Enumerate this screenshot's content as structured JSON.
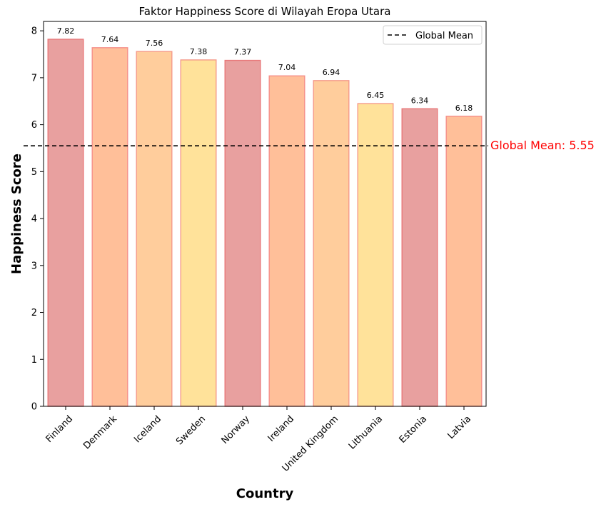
{
  "chart_data": {
    "type": "bar",
    "title": "Faktor Happiness Score di Wilayah Eropa Utara",
    "xlabel": "Country",
    "ylabel": "Happiness Score",
    "categories": [
      "Finland",
      "Denmark",
      "Iceland",
      "Sweden",
      "Norway",
      "Ireland",
      "United Kingdom",
      "Lithuania",
      "Estonia",
      "Latvia"
    ],
    "values": [
      7.82,
      7.64,
      7.56,
      7.38,
      7.37,
      7.04,
      6.94,
      6.45,
      6.34,
      6.18
    ],
    "value_labels": [
      "7.82",
      "7.64",
      "7.56",
      "7.38",
      "7.37",
      "7.04",
      "6.94",
      "6.45",
      "6.34",
      "6.18"
    ],
    "bar_colors": [
      "#e8a09f",
      "#ffbf99",
      "#ffcd9c",
      "#ffe29a",
      "#e8a09f",
      "#ffbf99",
      "#ffcd9c",
      "#ffe29a",
      "#e8a09f",
      "#ffbf99"
    ],
    "bar_edge_colors": [
      "#e8787a",
      "#f5908a",
      "#f59a8a",
      "#f59a8a",
      "#e8787a",
      "#f5908a",
      "#f59a8a",
      "#f59a8a",
      "#e8787a",
      "#f5908a"
    ],
    "ylim": [
      0,
      8.2
    ],
    "yticks": [
      0,
      1,
      2,
      3,
      4,
      5,
      6,
      7,
      8
    ],
    "ytick_labels": [
      "0",
      "1",
      "2",
      "3",
      "4",
      "5",
      "6",
      "7",
      "8"
    ],
    "grid": false,
    "reference_line": {
      "value": 5.55,
      "style": "dashed",
      "color": "#000000",
      "legend_label": "Global Mean",
      "annotation": "Global Mean: 5.55",
      "annotation_color": "#ff0000"
    },
    "legend": {
      "placement": "top-right",
      "entries": [
        "Global Mean"
      ]
    }
  }
}
